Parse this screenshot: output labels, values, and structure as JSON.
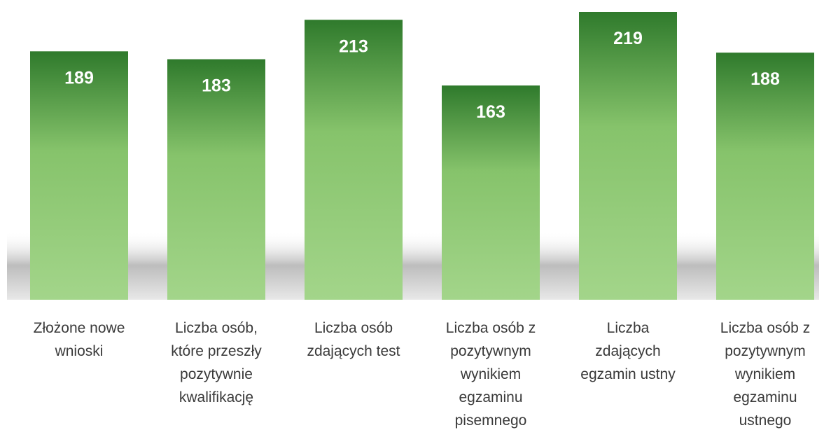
{
  "chart_data": {
    "type": "bar",
    "categories": [
      "Złożone nowe wnioski",
      "Liczba osób, które przeszły pozytywnie kwalifikację",
      "Liczba osób zdających test",
      "Liczba osób z pozytywnym wynikiem egzaminu pisemnego",
      "Liczba zdających egzamin ustny",
      "Liczba osób z pozytywnym wynikiem egzaminu ustnego"
    ],
    "values": [
      189,
      183,
      213,
      163,
      219,
      188
    ],
    "color": "#8fca72"
  }
}
